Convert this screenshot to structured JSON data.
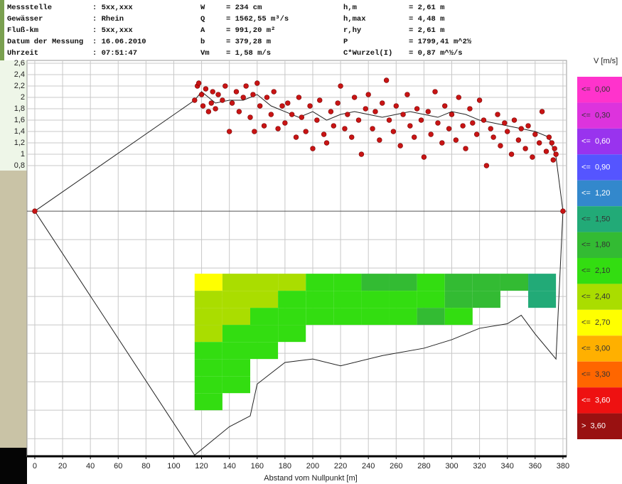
{
  "header": {
    "col1": [
      [
        "Messstelle",
        ": 5xx,xxx"
      ],
      [
        "Gewässer",
        ": Rhein"
      ],
      [
        "Fluß-km",
        ": 5xx,xxx"
      ],
      [
        "Datum der Messung",
        ": 16.06.2010"
      ],
      [
        "Uhrzeit",
        ": 07:51:47"
      ]
    ],
    "col2": [
      [
        "W",
        "=  234 cm"
      ],
      [
        "Q",
        "=  1562,55 m³/s"
      ],
      [
        "A",
        "=  991,20 m²"
      ],
      [
        "b",
        "=  379,28 m"
      ],
      [
        "Vm",
        "=  1,58 m/s"
      ]
    ],
    "col3": [
      [
        "h,m",
        "=  2,61 m"
      ],
      [
        "h,max",
        "=  4,48 m"
      ],
      [
        "r,hy",
        "=  2,61 m"
      ],
      [
        "P",
        "=  1799,41 m^2½"
      ],
      [
        "C*Wurzel(I)",
        "=  0,87 m^½/s"
      ]
    ]
  },
  "chart_data": {
    "type": "scatter",
    "x_label": "Abstand vom Nullpunkt [m]",
    "xlim": [
      -5.6,
      382.6
    ],
    "ylim": [
      -4.31,
      2.65
    ],
    "xticks": [
      0,
      20,
      40,
      60,
      80,
      100,
      120,
      140,
      160,
      180,
      200,
      220,
      240,
      260,
      280,
      300,
      320,
      340,
      360,
      380
    ],
    "yticks": [
      {
        "value": 0.8,
        "label": "0,8"
      },
      1,
      {
        "value": 1.2,
        "label": "1,2"
      },
      {
        "value": 1.4,
        "label": "1,4"
      },
      {
        "value": 1.6,
        "label": "1,6"
      },
      {
        "value": 1.8,
        "label": "1,8"
      },
      2,
      {
        "value": 2.2,
        "label": "2,2"
      },
      {
        "value": 2.4,
        "label": "2,4"
      },
      {
        "value": 2.6,
        "label": "2,6"
      }
    ],
    "ygrid": [
      0,
      -0.5,
      -1,
      -1.5,
      -2,
      -2.5,
      -3,
      -3.5,
      -4
    ],
    "grid": true,
    "points": {
      "color": "#c81414",
      "x": [
        0,
        115,
        117,
        118,
        120,
        121,
        123,
        125,
        127,
        128,
        130,
        132,
        135,
        137,
        140,
        142,
        145,
        147,
        150,
        152,
        155,
        157,
        158,
        160,
        162,
        165,
        167,
        170,
        172,
        175,
        178,
        180,
        182,
        185,
        188,
        190,
        192,
        195,
        198,
        200,
        203,
        205,
        208,
        210,
        213,
        215,
        218,
        220,
        223,
        225,
        228,
        230,
        233,
        235,
        238,
        240,
        243,
        245,
        248,
        250,
        253,
        255,
        258,
        260,
        263,
        265,
        268,
        270,
        273,
        275,
        278,
        280,
        283,
        285,
        288,
        290,
        293,
        295,
        298,
        300,
        303,
        305,
        308,
        310,
        313,
        315,
        318,
        320,
        323,
        325,
        328,
        330,
        333,
        335,
        338,
        340,
        343,
        345,
        348,
        350,
        353,
        355,
        358,
        360,
        363,
        365,
        368,
        370,
        372,
        373,
        374,
        375,
        380
      ],
      "values": [
        0,
        1.95,
        2.2,
        2.25,
        2.05,
        1.85,
        2.15,
        1.75,
        1.9,
        2.1,
        1.8,
        2.05,
        1.95,
        2.2,
        1.4,
        1.9,
        2.1,
        1.75,
        2.0,
        2.2,
        1.65,
        2.05,
        1.4,
        2.25,
        1.85,
        1.5,
        2.0,
        1.7,
        2.1,
        1.45,
        1.85,
        1.55,
        1.9,
        1.7,
        1.3,
        2.0,
        1.65,
        1.4,
        1.85,
        1.1,
        1.6,
        1.95,
        1.35,
        1.2,
        1.75,
        1.5,
        1.9,
        2.2,
        1.45,
        1.7,
        1.3,
        2.0,
        1.6,
        1.0,
        1.8,
        2.05,
        1.45,
        1.75,
        1.25,
        1.9,
        2.3,
        1.6,
        1.4,
        1.85,
        1.15,
        1.7,
        2.05,
        1.5,
        1.3,
        1.8,
        1.6,
        0.95,
        1.75,
        1.35,
        2.1,
        1.55,
        1.2,
        1.85,
        1.45,
        1.7,
        1.25,
        2.0,
        1.5,
        1.1,
        1.8,
        1.55,
        1.35,
        1.95,
        1.6,
        0.8,
        1.45,
        1.3,
        1.7,
        1.15,
        1.55,
        1.4,
        1.0,
        1.6,
        1.25,
        1.45,
        1.1,
        1.5,
        0.95,
        1.35,
        1.2,
        1.75,
        1.05,
        1.3,
        1.2,
        0.9,
        1.1,
        1.0,
        0
      ]
    },
    "lines": [
      {
        "color": "#222",
        "x": [
          0,
          115,
          120,
          125,
          130,
          140,
          150,
          160,
          170,
          180,
          190,
          200,
          210,
          220,
          230,
          240,
          250,
          260,
          270,
          280,
          290,
          300,
          310,
          320,
          330,
          340,
          350,
          360,
          370,
          375,
          380
        ],
        "values": [
          0,
          1.95,
          2.1,
          2.0,
          1.9,
          1.95,
          1.95,
          2.05,
          1.85,
          1.75,
          1.65,
          1.75,
          1.6,
          1.7,
          1.75,
          1.7,
          1.65,
          1.7,
          1.75,
          1.7,
          1.65,
          1.75,
          1.7,
          1.6,
          1.55,
          1.5,
          1.45,
          1.4,
          1.3,
          0.95,
          0
        ]
      },
      {
        "color": "#222",
        "x": [
          0,
          115,
          140,
          155,
          160,
          170,
          180,
          200,
          220,
          250,
          280,
          300,
          320,
          340,
          350,
          360,
          375,
          380
        ],
        "values": [
          0,
          -4.29,
          -3.79,
          -3.6,
          -3.04,
          -2.85,
          -2.66,
          -2.6,
          -2.72,
          -2.54,
          -2.41,
          -2.26,
          -2.06,
          -1.98,
          -1.83,
          -2.16,
          -2.6,
          0
        ]
      }
    ],
    "heatmap": {
      "x_edges": [
        115,
        135,
        155,
        175,
        195,
        215,
        235,
        255,
        275,
        295,
        315,
        335,
        355,
        375
      ],
      "depth_edges": [
        -1.1,
        -1.4,
        -1.7,
        -2.0,
        -2.3,
        -2.6,
        -2.9,
        -3.2,
        -3.5
      ],
      "values": [
        [
          2.5,
          2.3,
          2.4,
          2.2,
          2.0,
          2.1,
          1.9,
          2.0
        ],
        [
          2.4,
          2.3,
          2.2,
          2.1,
          2.0,
          1.9,
          1.9,
          null
        ],
        [
          2.3,
          2.2,
          2.1,
          2.0,
          1.9,
          null,
          null,
          null
        ],
        [
          2.2,
          2.1,
          2.0,
          1.9,
          null,
          null,
          null,
          null
        ],
        [
          2.1,
          2.0,
          1.9,
          null,
          null,
          null,
          null,
          null
        ],
        [
          1.9,
          2.0,
          1.9,
          null,
          null,
          null,
          null,
          null
        ],
        [
          1.7,
          1.9,
          2.0,
          null,
          null,
          null,
          null,
          null
        ],
        [
          1.8,
          1.9,
          1.9,
          null,
          null,
          null,
          null,
          null
        ],
        [
          1.9,
          2.0,
          1.8,
          null,
          null,
          null,
          null,
          null
        ],
        [
          1.7,
          1.8,
          1.9,
          null,
          null,
          null,
          null,
          null
        ],
        [
          1.8,
          1.7,
          null,
          null,
          null,
          null,
          null,
          null
        ],
        [
          1.6,
          null,
          null,
          null,
          null,
          null,
          null,
          null
        ],
        [
          1.4,
          1.3,
          null,
          null,
          null,
          null,
          null,
          null
        ]
      ]
    },
    "legend": {
      "title": "V [m/s]",
      "entries": [
        {
          "value": 0.0,
          "label": "<=  0,00",
          "color": "#ff33cc"
        },
        {
          "value": 0.3,
          "label": "<=  0,30",
          "color": "#dd33dd"
        },
        {
          "value": 0.6,
          "label": "<=  0,60",
          "color": "#9933ee"
        },
        {
          "value": 0.9,
          "label": "<=  0,90",
          "color": "#5555ff"
        },
        {
          "value": 1.2,
          "label": "<=  1,20",
          "color": "#3388cc"
        },
        {
          "value": 1.5,
          "label": "<=  1,50",
          "color": "#22aa77"
        },
        {
          "value": 1.8,
          "label": "<=  1,80",
          "color": "#33bb33"
        },
        {
          "value": 2.1,
          "label": "<=  2,10",
          "color": "#33dd11"
        },
        {
          "value": 2.4,
          "label": "<=  2,40",
          "color": "#aadd00"
        },
        {
          "value": 2.7,
          "label": "<=  2,70",
          "color": "#ffff00"
        },
        {
          "value": 3.0,
          "label": "<=  3,00",
          "color": "#ffb000"
        },
        {
          "value": 3.3,
          "label": "<=  3,30",
          "color": "#ff6600"
        },
        {
          "value": 3.6,
          "label": "<=  3,60",
          "color": "#ee1111"
        },
        {
          "value": 3.6,
          "label": ">  3,60",
          "color": "#991111"
        }
      ]
    }
  }
}
